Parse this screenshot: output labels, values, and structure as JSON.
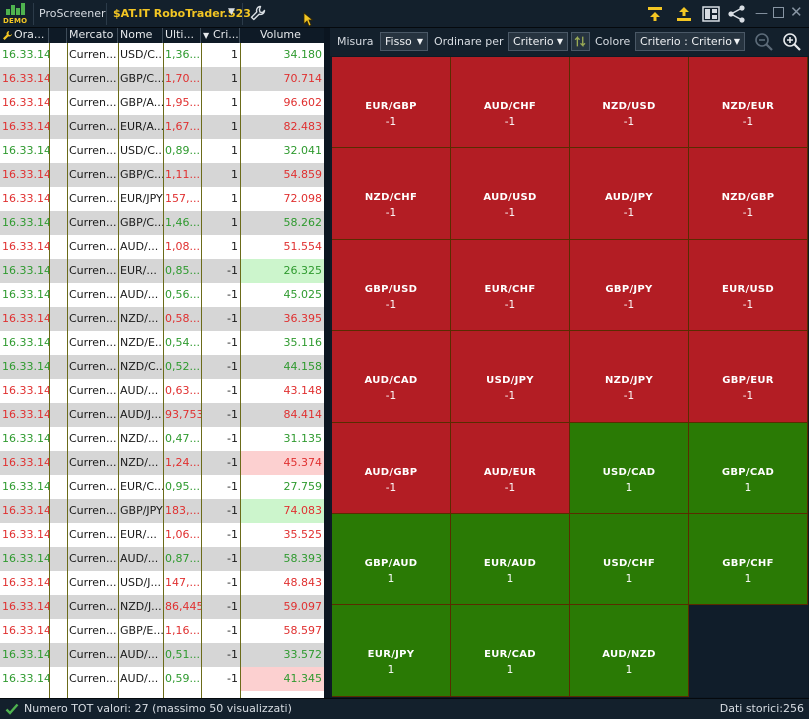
{
  "toolbar": {
    "logo_text": "DEMO",
    "app_name": "ProScreener",
    "screener_name": "$AT.IT RoboTrader.S23"
  },
  "table": {
    "headers": [
      "Ora...",
      "",
      "Mercato",
      "Nome",
      "Ulti...",
      "Cri...",
      "Volume"
    ],
    "rows": [
      {
        "time": "16.33.14",
        "trend": "pos",
        "market": "Curren...",
        "name": "USD/C...",
        "last": "1,36...",
        "crit": "1",
        "volume": "34.180",
        "vol_bg": ""
      },
      {
        "time": "16.33.14",
        "trend": "neg",
        "market": "Curren...",
        "name": "GBP/C...",
        "last": "1,70...",
        "crit": "1",
        "volume": "70.714",
        "vol_bg": ""
      },
      {
        "time": "16.33.14",
        "trend": "neg",
        "market": "Curren...",
        "name": "GBP/A...",
        "last": "1,95...",
        "crit": "1",
        "volume": "96.602",
        "vol_bg": ""
      },
      {
        "time": "16.33.14",
        "trend": "neg",
        "market": "Curren...",
        "name": "EUR/A...",
        "last": "1,67...",
        "crit": "1",
        "volume": "82.483",
        "vol_bg": ""
      },
      {
        "time": "16.33.14",
        "trend": "pos",
        "market": "Curren...",
        "name": "USD/C...",
        "last": "0,89...",
        "crit": "1",
        "volume": "32.041",
        "vol_bg": ""
      },
      {
        "time": "16.33.14",
        "trend": "neg",
        "market": "Curren...",
        "name": "GBP/C...",
        "last": "1,11...",
        "crit": "1",
        "volume": "54.859",
        "vol_bg": ""
      },
      {
        "time": "16.33.14",
        "trend": "neg",
        "market": "Curren...",
        "name": "EUR/JPY",
        "last": "157,...",
        "crit": "1",
        "volume": "72.098",
        "vol_bg": ""
      },
      {
        "time": "16.33.14",
        "trend": "pos",
        "market": "Curren...",
        "name": "GBP/C...",
        "last": "1,46...",
        "crit": "1",
        "volume": "58.262",
        "vol_bg": ""
      },
      {
        "time": "16.33.14",
        "trend": "neg",
        "market": "Curren...",
        "name": "AUD/...",
        "last": "1,08...",
        "crit": "1",
        "volume": "51.554",
        "vol_bg": ""
      },
      {
        "time": "16.33.14",
        "trend": "pos",
        "market": "Curren...",
        "name": "EUR/...",
        "last": "0,85...",
        "crit": "-1",
        "volume": "26.325",
        "vol_bg": "#ccf5cc"
      },
      {
        "time": "16.33.14",
        "trend": "pos",
        "market": "Curren...",
        "name": "AUD/...",
        "last": "0,56...",
        "crit": "-1",
        "volume": "45.025",
        "vol_bg": ""
      },
      {
        "time": "16.33.14",
        "trend": "neg",
        "market": "Curren...",
        "name": "NZD/...",
        "last": "0,58...",
        "crit": "-1",
        "volume": "36.395",
        "vol_bg": ""
      },
      {
        "time": "16.33.14",
        "trend": "pos",
        "market": "Curren...",
        "name": "NZD/E...",
        "last": "0,54...",
        "crit": "-1",
        "volume": "35.116",
        "vol_bg": ""
      },
      {
        "time": "16.33.14",
        "trend": "pos",
        "market": "Curren...",
        "name": "NZD/C...",
        "last": "0,52...",
        "crit": "-1",
        "volume": "44.158",
        "vol_bg": ""
      },
      {
        "time": "16.33.14",
        "trend": "neg",
        "market": "Curren...",
        "name": "AUD/...",
        "last": "0,63...",
        "crit": "-1",
        "volume": "43.148",
        "vol_bg": ""
      },
      {
        "time": "16.33.14",
        "trend": "neg",
        "market": "Curren...",
        "name": "AUD/J...",
        "last": "93,753",
        "crit": "-1",
        "volume": "84.414",
        "vol_bg": ""
      },
      {
        "time": "16.33.14",
        "trend": "pos",
        "market": "Curren...",
        "name": "NZD/...",
        "last": "0,47...",
        "crit": "-1",
        "volume": "31.135",
        "vol_bg": ""
      },
      {
        "time": "16.33.14",
        "trend": "neg",
        "market": "Curren...",
        "name": "NZD/...",
        "last": "1,24...",
        "crit": "-1",
        "volume": "45.374",
        "vol_bg": "#fcd0d0"
      },
      {
        "time": "16.33.14",
        "trend": "pos",
        "market": "Curren...",
        "name": "EUR/C...",
        "last": "0,95...",
        "crit": "-1",
        "volume": "27.759",
        "vol_bg": ""
      },
      {
        "time": "16.33.14",
        "trend": "neg",
        "market": "Curren...",
        "name": "GBP/JPY",
        "last": "183,...",
        "crit": "-1",
        "volume": "74.083",
        "vol_bg": "#ccf5cc"
      },
      {
        "time": "16.33.14",
        "trend": "neg",
        "market": "Curren...",
        "name": "EUR/...",
        "last": "1,06...",
        "crit": "-1",
        "volume": "35.525",
        "vol_bg": ""
      },
      {
        "time": "16.33.14",
        "trend": "pos",
        "market": "Curren...",
        "name": "AUD/...",
        "last": "0,87...",
        "crit": "-1",
        "volume": "58.393",
        "vol_bg": ""
      },
      {
        "time": "16.33.14",
        "trend": "neg",
        "market": "Curren...",
        "name": "USD/J...",
        "last": "147,...",
        "crit": "-1",
        "volume": "48.843",
        "vol_bg": ""
      },
      {
        "time": "16.33.14",
        "trend": "neg",
        "market": "Curren...",
        "name": "NZD/J...",
        "last": "86,445",
        "crit": "-1",
        "volume": "59.097",
        "vol_bg": ""
      },
      {
        "time": "16.33.14",
        "trend": "neg",
        "market": "Curren...",
        "name": "GBP/E...",
        "last": "1,16...",
        "crit": "-1",
        "volume": "58.597",
        "vol_bg": ""
      },
      {
        "time": "16.33.14",
        "trend": "pos",
        "market": "Curren...",
        "name": "AUD/...",
        "last": "0,51...",
        "crit": "-1",
        "volume": "33.572",
        "vol_bg": ""
      },
      {
        "time": "16.33.14",
        "trend": "pos",
        "market": "Curren...",
        "name": "AUD/...",
        "last": "0,59...",
        "crit": "-1",
        "volume": "41.345",
        "vol_bg": "#fcd0d0"
      }
    ]
  },
  "heatmap_toolbar": {
    "size_label": "Misura",
    "size_value": "Fisso",
    "sort_label": "Ordinare per",
    "sort_value": "Criterio",
    "color_label": "Colore",
    "color_value": "Criterio : Criterio"
  },
  "heatmap": {
    "tiles": [
      {
        "symbol": "EUR/GBP",
        "value": "-1"
      },
      {
        "symbol": "AUD/CHF",
        "value": "-1"
      },
      {
        "symbol": "NZD/USD",
        "value": "-1"
      },
      {
        "symbol": "NZD/EUR",
        "value": "-1"
      },
      {
        "symbol": "NZD/CHF",
        "value": "-1"
      },
      {
        "symbol": "AUD/USD",
        "value": "-1"
      },
      {
        "symbol": "AUD/JPY",
        "value": "-1"
      },
      {
        "symbol": "NZD/GBP",
        "value": "-1"
      },
      {
        "symbol": "GBP/USD",
        "value": "-1"
      },
      {
        "symbol": "EUR/CHF",
        "value": "-1"
      },
      {
        "symbol": "GBP/JPY",
        "value": "-1"
      },
      {
        "symbol": "EUR/USD",
        "value": "-1"
      },
      {
        "symbol": "AUD/CAD",
        "value": "-1"
      },
      {
        "symbol": "USD/JPY",
        "value": "-1"
      },
      {
        "symbol": "NZD/JPY",
        "value": "-1"
      },
      {
        "symbol": "GBP/EUR",
        "value": "-1"
      },
      {
        "symbol": "AUD/GBP",
        "value": "-1"
      },
      {
        "symbol": "AUD/EUR",
        "value": "-1"
      },
      {
        "symbol": "USD/CAD",
        "value": "1"
      },
      {
        "symbol": "GBP/CAD",
        "value": "1"
      },
      {
        "symbol": "GBP/AUD",
        "value": "1"
      },
      {
        "symbol": "EUR/AUD",
        "value": "1"
      },
      {
        "symbol": "USD/CHF",
        "value": "1"
      },
      {
        "symbol": "GBP/CHF",
        "value": "1"
      },
      {
        "symbol": "EUR/JPY",
        "value": "1"
      },
      {
        "symbol": "EUR/CAD",
        "value": "1"
      },
      {
        "symbol": "AUD/NZD",
        "value": "1"
      }
    ],
    "colors": {
      "negative": "#b31d24",
      "positive": "#2a7a05",
      "empty": "#101d2a",
      "positive_text": "#2f9a2f",
      "negative_text": "#e03030"
    }
  },
  "status": {
    "count_text": "Numero TOT valori: 27 (massimo 50 visualizzati)",
    "history_text": "Dati storici:256"
  }
}
